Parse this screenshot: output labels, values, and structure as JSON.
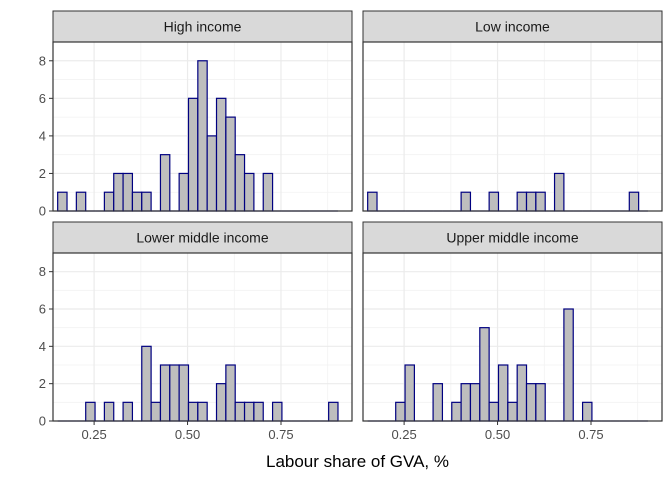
{
  "chart_data": {
    "type": "bar",
    "subtype": "faceted-histogram",
    "title": "",
    "xlabel": "Labour share of GVA, %",
    "ylabel": "",
    "xlim": [
      0.14,
      0.94
    ],
    "ylim": [
      0,
      9
    ],
    "x_ticks": [
      0.25,
      0.5,
      0.75
    ],
    "x_tick_labels": [
      "0.25",
      "0.50",
      "0.75"
    ],
    "y_ticks": [
      0,
      2,
      4,
      6,
      8
    ],
    "y_tick_labels": [
      "0",
      "2",
      "4",
      "6",
      "8"
    ],
    "grid": true,
    "bin_width": 0.025,
    "bin_centers": [
      0.165,
      0.19,
      0.215,
      0.24,
      0.265,
      0.29,
      0.315,
      0.34,
      0.365,
      0.39,
      0.415,
      0.44,
      0.465,
      0.49,
      0.515,
      0.54,
      0.565,
      0.59,
      0.615,
      0.64,
      0.665,
      0.69,
      0.715,
      0.74,
      0.765,
      0.79,
      0.815,
      0.84,
      0.865,
      0.89
    ],
    "bar_fill": "#bebebe",
    "bar_outline": "#000080",
    "strip_fill": "#d9d9d9",
    "panel_border": "#333333",
    "panels": [
      {
        "name": "High income",
        "counts": [
          1,
          0,
          1,
          0,
          0,
          1,
          2,
          2,
          1,
          1,
          0,
          3,
          0,
          2,
          6,
          8,
          4,
          6,
          5,
          3,
          2,
          0,
          2,
          0,
          0,
          0,
          0,
          0,
          0,
          0
        ]
      },
      {
        "name": "Low income",
        "counts": [
          1,
          0,
          0,
          0,
          0,
          0,
          0,
          0,
          0,
          0,
          1,
          0,
          0,
          1,
          0,
          0,
          1,
          1,
          1,
          0,
          2,
          0,
          0,
          0,
          0,
          0,
          0,
          0,
          1,
          0
        ]
      },
      {
        "name": "Lower middle income",
        "counts": [
          0,
          0,
          0,
          1,
          0,
          1,
          0,
          1,
          0,
          4,
          1,
          3,
          3,
          3,
          1,
          1,
          0,
          2,
          3,
          1,
          1,
          1,
          0,
          1,
          0,
          0,
          0,
          0,
          0,
          1
        ]
      },
      {
        "name": "Upper middle income",
        "counts": [
          0,
          0,
          0,
          1,
          3,
          0,
          0,
          2,
          0,
          1,
          2,
          2,
          5,
          1,
          3,
          1,
          3,
          2,
          2,
          0,
          0,
          6,
          0,
          1,
          0,
          0,
          0,
          0,
          0,
          0
        ]
      }
    ]
  }
}
